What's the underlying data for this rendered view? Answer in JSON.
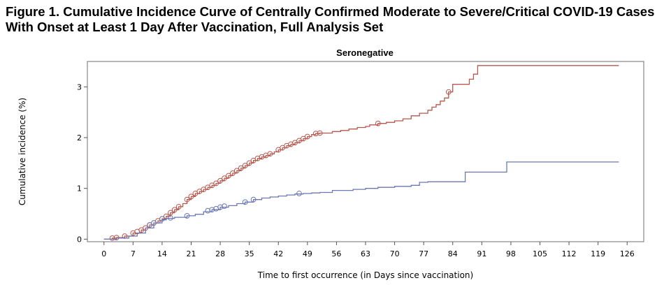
{
  "figure": {
    "title": "Figure 1. Cumulative Incidence Curve of Centrally Confirmed Moderate to Severe/Critical COVID-19 Cases With Onset at Least 1 Day After Vaccination, Full Analysis Set"
  },
  "chart_data": {
    "type": "line",
    "subtype": "step",
    "title": "Seronegative",
    "xlabel": "Time to first occurrence (in Days since vaccination)",
    "ylabel": "Cumulative incidence (%)",
    "xlim": [
      -4,
      130
    ],
    "ylim": [
      -0.05,
      3.5
    ],
    "xticks": [
      0,
      7,
      14,
      21,
      28,
      35,
      42,
      49,
      56,
      63,
      70,
      77,
      84,
      91,
      98,
      105,
      112,
      119,
      126
    ],
    "yticks": [
      0,
      1,
      2,
      3
    ],
    "grid": false,
    "legend": null,
    "series": [
      {
        "name": "red-curve",
        "color": "#b5584e",
        "points": [
          [
            0,
            0
          ],
          [
            2,
            0.02
          ],
          [
            3,
            0.03
          ],
          [
            5,
            0.06
          ],
          [
            7,
            0.12
          ],
          [
            9,
            0.18
          ],
          [
            10,
            0.22
          ],
          [
            11,
            0.28
          ],
          [
            12,
            0.32
          ],
          [
            13,
            0.36
          ],
          [
            14,
            0.4
          ],
          [
            15,
            0.45
          ],
          [
            16,
            0.52
          ],
          [
            17,
            0.58
          ],
          [
            18,
            0.64
          ],
          [
            19,
            0.7
          ],
          [
            20,
            0.78
          ],
          [
            21,
            0.84
          ],
          [
            22,
            0.9
          ],
          [
            23,
            0.94
          ],
          [
            24,
            0.98
          ],
          [
            25,
            1.02
          ],
          [
            26,
            1.06
          ],
          [
            27,
            1.1
          ],
          [
            28,
            1.15
          ],
          [
            29,
            1.2
          ],
          [
            30,
            1.25
          ],
          [
            31,
            1.3
          ],
          [
            32,
            1.35
          ],
          [
            33,
            1.4
          ],
          [
            34,
            1.45
          ],
          [
            35,
            1.5
          ],
          [
            36,
            1.55
          ],
          [
            37,
            1.59
          ],
          [
            38,
            1.62
          ],
          [
            39,
            1.65
          ],
          [
            40,
            1.68
          ],
          [
            41,
            1.72
          ],
          [
            42,
            1.76
          ],
          [
            43,
            1.8
          ],
          [
            44,
            1.84
          ],
          [
            45,
            1.87
          ],
          [
            46,
            1.9
          ],
          [
            47,
            1.94
          ],
          [
            48,
            1.98
          ],
          [
            49,
            2.02
          ],
          [
            50,
            2.06
          ],
          [
            51,
            2.08
          ],
          [
            52,
            2.09
          ],
          [
            55,
            2.12
          ],
          [
            57,
            2.14
          ],
          [
            59,
            2.17
          ],
          [
            61,
            2.2
          ],
          [
            63,
            2.22
          ],
          [
            64,
            2.25
          ],
          [
            66,
            2.28
          ],
          [
            68,
            2.3
          ],
          [
            70,
            2.33
          ],
          [
            72,
            2.37
          ],
          [
            74,
            2.43
          ],
          [
            76,
            2.48
          ],
          [
            78,
            2.54
          ],
          [
            79,
            2.6
          ],
          [
            80,
            2.65
          ],
          [
            81,
            2.72
          ],
          [
            82,
            2.78
          ],
          [
            83,
            2.9
          ],
          [
            84,
            3.05
          ],
          [
            88,
            3.15
          ],
          [
            89,
            3.25
          ],
          [
            90,
            3.42
          ],
          [
            124,
            3.42
          ]
        ],
        "censor_marks": [
          [
            2,
            0.02
          ],
          [
            3,
            0.03
          ],
          [
            5,
            0.06
          ],
          [
            7,
            0.12
          ],
          [
            8,
            0.15
          ],
          [
            9,
            0.18
          ],
          [
            10,
            0.22
          ],
          [
            11,
            0.28
          ],
          [
            12,
            0.32
          ],
          [
            13,
            0.36
          ],
          [
            14,
            0.4
          ],
          [
            15,
            0.45
          ],
          [
            16,
            0.52
          ],
          [
            17,
            0.58
          ],
          [
            18,
            0.64
          ],
          [
            20,
            0.78
          ],
          [
            21,
            0.84
          ],
          [
            22,
            0.9
          ],
          [
            23,
            0.94
          ],
          [
            24,
            0.98
          ],
          [
            25,
            1.02
          ],
          [
            26,
            1.06
          ],
          [
            27,
            1.1
          ],
          [
            28,
            1.15
          ],
          [
            29,
            1.2
          ],
          [
            30,
            1.25
          ],
          [
            31,
            1.3
          ],
          [
            32,
            1.35
          ],
          [
            33,
            1.4
          ],
          [
            34,
            1.45
          ],
          [
            35,
            1.5
          ],
          [
            36,
            1.55
          ],
          [
            37,
            1.59
          ],
          [
            38,
            1.62
          ],
          [
            39,
            1.65
          ],
          [
            40,
            1.68
          ],
          [
            42,
            1.76
          ],
          [
            43,
            1.8
          ],
          [
            44,
            1.84
          ],
          [
            45,
            1.87
          ],
          [
            46,
            1.9
          ],
          [
            47,
            1.94
          ],
          [
            48,
            1.98
          ],
          [
            49,
            2.02
          ],
          [
            51,
            2.08
          ],
          [
            52,
            2.09
          ],
          [
            66,
            2.28
          ],
          [
            83,
            2.9
          ]
        ]
      },
      {
        "name": "blue-curve",
        "color": "#6b78b4",
        "points": [
          [
            0,
            0
          ],
          [
            3,
            0.02
          ],
          [
            6,
            0.06
          ],
          [
            8,
            0.12
          ],
          [
            10,
            0.22
          ],
          [
            12,
            0.32
          ],
          [
            14,
            0.38
          ],
          [
            15,
            0.41
          ],
          [
            17,
            0.43
          ],
          [
            20,
            0.46
          ],
          [
            22,
            0.49
          ],
          [
            24,
            0.54
          ],
          [
            26,
            0.58
          ],
          [
            28,
            0.63
          ],
          [
            30,
            0.66
          ],
          [
            32,
            0.7
          ],
          [
            34,
            0.73
          ],
          [
            36,
            0.78
          ],
          [
            38,
            0.81
          ],
          [
            40,
            0.83
          ],
          [
            42,
            0.85
          ],
          [
            44,
            0.87
          ],
          [
            46,
            0.89
          ],
          [
            48,
            0.9
          ],
          [
            50,
            0.91
          ],
          [
            52,
            0.92
          ],
          [
            55,
            0.96
          ],
          [
            60,
            0.98
          ],
          [
            63,
            1.0
          ],
          [
            66,
            1.02
          ],
          [
            70,
            1.04
          ],
          [
            74,
            1.06
          ],
          [
            76,
            1.12
          ],
          [
            78,
            1.13
          ],
          [
            87,
            1.13
          ],
          [
            87,
            1.32
          ],
          [
            97,
            1.32
          ],
          [
            97,
            1.52
          ],
          [
            124,
            1.52
          ]
        ],
        "censor_marks": [
          [
            11,
            0.28
          ],
          [
            12,
            0.32
          ],
          [
            14,
            0.4
          ],
          [
            16,
            0.42
          ],
          [
            20,
            0.46
          ],
          [
            25,
            0.56
          ],
          [
            26,
            0.58
          ],
          [
            27,
            0.6
          ],
          [
            28,
            0.63
          ],
          [
            29,
            0.65
          ],
          [
            34,
            0.73
          ],
          [
            36,
            0.78
          ],
          [
            47,
            0.9
          ]
        ]
      }
    ]
  }
}
